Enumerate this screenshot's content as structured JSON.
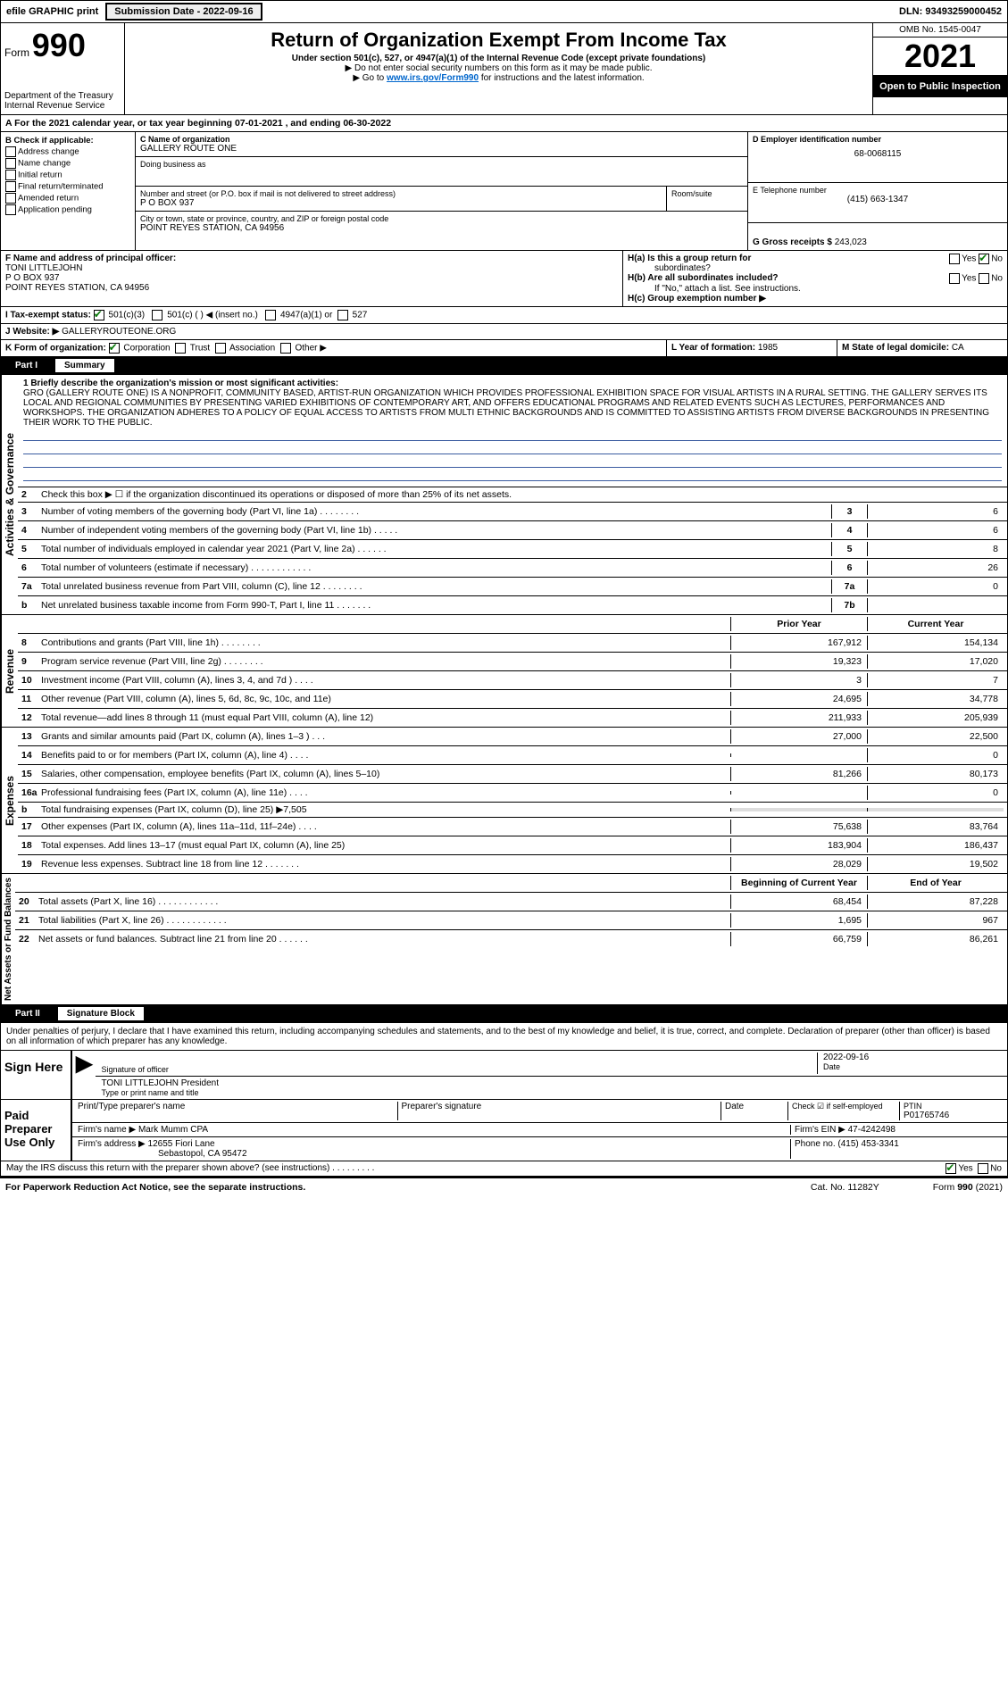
{
  "topbar": {
    "efile": "efile GRAPHIC print",
    "submission": "Submission Date - 2022-09-16",
    "dln": "DLN: 93493259000452"
  },
  "header": {
    "form_prefix": "Form",
    "form_num": "990",
    "dept": "Department of the Treasury",
    "irs": "Internal Revenue Service",
    "title": "Return of Organization Exempt From Income Tax",
    "subtitle": "Under section 501(c), 527, or 4947(a)(1) of the Internal Revenue Code (except private foundations)",
    "note1": "▶ Do not enter social security numbers on this form as it may be made public.",
    "note2_pre": "▶ Go to ",
    "note2_link": "www.irs.gov/Form990",
    "note2_post": " for instructions and the latest information.",
    "omb": "OMB No. 1545-0047",
    "year": "2021",
    "inspection": "Open to Public Inspection"
  },
  "period": {
    "text_a": "A For the 2021 calendar year, or tax year beginning 07-01-2021   , and ending 06-30-2022"
  },
  "boxB": {
    "title": "B Check if applicable:",
    "opts": [
      "Address change",
      "Name change",
      "Initial return",
      "Final return/terminated",
      "Amended return",
      "Application pending"
    ]
  },
  "boxC": {
    "label_name": "C Name of organization",
    "org": "GALLERY ROUTE ONE",
    "dba_label": "Doing business as",
    "addr_label": "Number and street (or P.O. box if mail is not delivered to street address)",
    "room_label": "Room/suite",
    "addr": "P O BOX 937",
    "city_label": "City or town, state or province, country, and ZIP or foreign postal code",
    "city": "POINT REYES STATION, CA  94956"
  },
  "boxD": {
    "label": "D Employer identification number",
    "val": "68-0068115"
  },
  "boxE": {
    "label": "E Telephone number",
    "val": "(415) 663-1347"
  },
  "boxG": {
    "label": "G Gross receipts $",
    "val": "243,023"
  },
  "boxF": {
    "label": "F  Name and address of principal officer:",
    "name": "TONI LITTLEJOHN",
    "l1": "P O BOX 937",
    "l2": "POINT REYES STATION, CA  94956"
  },
  "boxH": {
    "a_label": "H(a)  Is this a group return for",
    "a_sub": "subordinates?",
    "b_label": "H(b)  Are all subordinates included?",
    "b_note": "If \"No,\" attach a list. See instructions.",
    "c_label": "H(c)  Group exemption number ▶",
    "yes": "Yes",
    "no": "No"
  },
  "boxI": {
    "label": "I    Tax-exempt status:",
    "o1": "501(c)(3)",
    "o2": "501(c) (  ) ◀ (insert no.)",
    "o3": "4947(a)(1) or",
    "o4": "527"
  },
  "boxJ": {
    "label": "J   Website: ▶",
    "val": "GALLERYROUTEONE.ORG"
  },
  "boxK": {
    "label": "K Form of organization:",
    "o1": "Corporation",
    "o2": "Trust",
    "o3": "Association",
    "o4": "Other ▶"
  },
  "boxL": {
    "label": "L Year of formation: ",
    "val": "1985"
  },
  "boxM": {
    "label": "M State of legal domicile: ",
    "val": "CA"
  },
  "part1": {
    "label": "Part I",
    "title": "Summary"
  },
  "mission": {
    "prompt": "1   Briefly describe the organization's mission or most significant activities:",
    "text": "GRO (GALLERY ROUTE ONE) IS A NONPROFIT, COMMUNITY BASED, ARTIST-RUN ORGANIZATION WHICH PROVIDES PROFESSIONAL EXHIBITION SPACE FOR VISUAL ARTISTS IN A RURAL SETTING. THE GALLERY SERVES ITS LOCAL AND REGIONAL COMMUNITIES BY PRESENTING VARIED EXHIBITIONS OF CONTEMPORARY ART, AND OFFERS EDUCATIONAL PROGRAMS AND RELATED EVENTS SUCH AS LECTURES, PERFORMANCES AND WORKSHOPS. THE ORGANIZATION ADHERES TO A POLICY OF EQUAL ACCESS TO ARTISTS FROM MULTI ETHNIC BACKGROUNDS AND IS COMMITTED TO ASSISTING ARTISTS FROM DIVERSE BACKGROUNDS IN PRESENTING THEIR WORK TO THE PUBLIC."
  },
  "gov_lines": [
    {
      "n": "2",
      "d": "Check this box ▶ ☐ if the organization discontinued its operations or disposed of more than 25% of its net assets.",
      "box": "",
      "v": ""
    },
    {
      "n": "3",
      "d": "Number of voting members of the governing body (Part VI, line 1a)  .    .    .    .    .    .    .    .",
      "box": "3",
      "v": "6"
    },
    {
      "n": "4",
      "d": "Number of independent voting members of the governing body (Part VI, line 1b)   .    .    .    .    .",
      "box": "4",
      "v": "6"
    },
    {
      "n": "5",
      "d": "Total number of individuals employed in calendar year 2021 (Part V, line 2a)   .    .    .    .    .    .",
      "box": "5",
      "v": "8"
    },
    {
      "n": "6",
      "d": "Total number of volunteers (estimate if necessary)   .    .    .    .    .    .    .    .    .    .    .    .",
      "box": "6",
      "v": "26"
    },
    {
      "n": "7a",
      "d": "Total unrelated business revenue from Part VIII, column (C), line 12   .    .    .    .    .    .    .    .",
      "box": "7a",
      "v": "0"
    },
    {
      "n": "b",
      "d": "Net unrelated business taxable income from Form 990-T, Part I, line 11   .    .    .    .    .    .    .",
      "box": "7b",
      "v": ""
    }
  ],
  "year_hdr": {
    "prior": "Prior Year",
    "current": "Current Year"
  },
  "rev_lines": [
    {
      "n": "8",
      "d": "Contributions and grants (Part VIII, line 1h)   .    .    .    .    .    .    .    .",
      "p": "167,912",
      "c": "154,134"
    },
    {
      "n": "9",
      "d": "Program service revenue (Part VIII, line 2g)   .    .    .    .    .    .    .    .",
      "p": "19,323",
      "c": "17,020"
    },
    {
      "n": "10",
      "d": "Investment income (Part VIII, column (A), lines 3, 4, and 7d )   .    .    .    .",
      "p": "3",
      "c": "7"
    },
    {
      "n": "11",
      "d": "Other revenue (Part VIII, column (A), lines 5, 6d, 8c, 9c, 10c, and 11e)",
      "p": "24,695",
      "c": "34,778"
    },
    {
      "n": "12",
      "d": "Total revenue—add lines 8 through 11 (must equal Part VIII, column (A), line 12)",
      "p": "211,933",
      "c": "205,939"
    }
  ],
  "exp_lines": [
    {
      "n": "13",
      "d": "Grants and similar amounts paid (Part IX, column (A), lines 1–3 )   .    .    .",
      "p": "27,000",
      "c": "22,500"
    },
    {
      "n": "14",
      "d": "Benefits paid to or for members (Part IX, column (A), line 4)   .    .    .    .",
      "p": "",
      "c": "0"
    },
    {
      "n": "15",
      "d": "Salaries, other compensation, employee benefits (Part IX, column (A), lines 5–10)",
      "p": "81,266",
      "c": "80,173"
    },
    {
      "n": "16a",
      "d": "Professional fundraising fees (Part IX, column (A), line 11e)   .    .    .    .",
      "p": "",
      "c": "0"
    },
    {
      "n": "b",
      "d": "Total fundraising expenses (Part IX, column (D), line 25) ▶7,505",
      "p": "__GREY__",
      "c": "__GREY__"
    },
    {
      "n": "17",
      "d": "Other expenses (Part IX, column (A), lines 11a–11d, 11f–24e)   .    .    .    .",
      "p": "75,638",
      "c": "83,764"
    },
    {
      "n": "18",
      "d": "Total expenses. Add lines 13–17 (must equal Part IX, column (A), line 25)",
      "p": "183,904",
      "c": "186,437"
    },
    {
      "n": "19",
      "d": "Revenue less expenses. Subtract line 18 from line 12   .    .    .    .    .    .    .",
      "p": "28,029",
      "c": "19,502"
    }
  ],
  "bal_hdr": {
    "beg": "Beginning of Current Year",
    "end": "End of Year"
  },
  "bal_lines": [
    {
      "n": "20",
      "d": "Total assets (Part X, line 16)   .    .    .    .    .    .    .    .    .    .    .    .",
      "p": "68,454",
      "c": "87,228"
    },
    {
      "n": "21",
      "d": "Total liabilities (Part X, line 26)   .    .    .    .    .    .    .    .    .    .    .    .",
      "p": "1,695",
      "c": "967"
    },
    {
      "n": "22",
      "d": "Net assets or fund balances. Subtract line 21 from line 20   .    .    .    .    .    .",
      "p": "66,759",
      "c": "86,261"
    }
  ],
  "part2": {
    "label": "Part II",
    "title": "Signature Block"
  },
  "sig": {
    "decl": "Under penalties of perjury, I declare that I have examined this return, including accompanying schedules and statements, and to the best of my knowledge and belief, it is true, correct, and complete. Declaration of preparer (other than officer) is based on all information of which preparer has any knowledge.",
    "sign_here": "Sign Here",
    "sig_officer": "Signature of officer",
    "date_label": "Date",
    "date_val": "2022-09-16",
    "name": "TONI LITTLEJOHN  President",
    "name_label": "Type or print name and title",
    "paid": "Paid Preparer Use Only",
    "print_label": "Print/Type preparer's name",
    "prep_sig": "Preparer's signature",
    "chk_label": "Check ☑ if self-employed",
    "ptin_label": "PTIN",
    "ptin": "P01765746",
    "firm_name_label": "Firm's name    ▶",
    "firm_name": "Mark Mumm CPA",
    "firm_ein_label": "Firm's EIN ▶",
    "firm_ein": "47-4242498",
    "firm_addr_label": "Firm's address ▶",
    "firm_addr1": "12655 Fiori Lane",
    "firm_addr2": "Sebastopol, CA  95472",
    "phone_label": "Phone no.",
    "phone": "(415) 453-3341",
    "discuss": "May the IRS discuss this return with the preparer shown above? (see instructions)   .    .    .    .    .    .    .    .    .",
    "yes": "Yes",
    "no": "No"
  },
  "footer": {
    "left": "For Paperwork Reduction Act Notice, see the separate instructions.",
    "mid": "Cat. No. 11282Y",
    "right": "Form 990 (2021)"
  },
  "vert": {
    "gov": "Activities & Governance",
    "rev": "Revenue",
    "exp": "Expenses",
    "bal": "Net Assets or Fund Balances"
  }
}
